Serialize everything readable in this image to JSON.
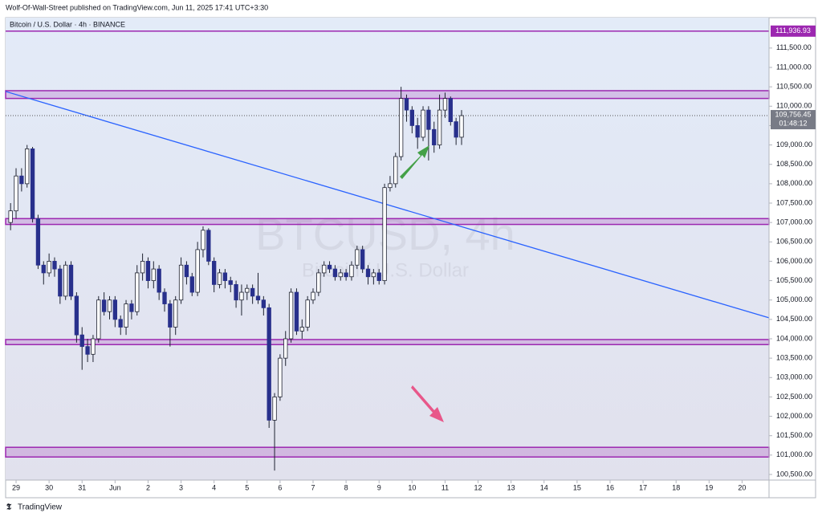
{
  "header": "Wolf-Of-Wall-Street published on TradingView.com, Jun 11, 2025 17:41 UTC+3:30",
  "footer": "TradingView",
  "chart_data": {
    "type": "candlestick",
    "title": "Bitcoin / U.S. Dollar · 4h · BINANCE",
    "watermark": "BTCUSD, 4h",
    "watermark_subtitle": "Bitcoin / U.S. Dollar",
    "up_color": "#ffffff",
    "down_color": "#28308c",
    "wick_color": "#1e2230",
    "candles": [
      [
        107000,
        107500,
        106800,
        107300
      ],
      [
        107300,
        108400,
        107100,
        108200
      ],
      [
        108200,
        108400,
        107800,
        108000
      ],
      [
        108000,
        109000,
        107900,
        108900
      ],
      [
        108900,
        108950,
        107000,
        107100
      ],
      [
        107100,
        107200,
        105800,
        105900
      ],
      [
        105900,
        106000,
        105400,
        105700
      ],
      [
        105700,
        106200,
        105600,
        106000
      ],
      [
        106000,
        106100,
        105600,
        105800
      ],
      [
        105800,
        105900,
        104900,
        105100
      ],
      [
        105100,
        106000,
        105000,
        105900
      ],
      [
        105900,
        106000,
        105000,
        105100
      ],
      [
        105100,
        105200,
        103900,
        104100
      ],
      [
        104100,
        104300,
        103200,
        103800
      ],
      [
        103800,
        104000,
        103400,
        103600
      ],
      [
        103600,
        104100,
        103400,
        104000
      ],
      [
        104000,
        105100,
        103900,
        105000
      ],
      [
        105000,
        105200,
        104600,
        104700
      ],
      [
        104700,
        105100,
        104500,
        105000
      ],
      [
        105000,
        105100,
        104300,
        104500
      ],
      [
        104500,
        104600,
        104100,
        104300
      ],
      [
        104300,
        105000,
        104100,
        104900
      ],
      [
        104900,
        105000,
        104500,
        104700
      ],
      [
        104700,
        105900,
        104600,
        105700
      ],
      [
        105700,
        106200,
        105500,
        106000
      ],
      [
        106000,
        106100,
        105300,
        105500
      ],
      [
        105500,
        106000,
        105300,
        105800
      ],
      [
        105800,
        105900,
        105000,
        105200
      ],
      [
        105200,
        105300,
        104700,
        104900
      ],
      [
        104900,
        105000,
        103800,
        104300
      ],
      [
        104300,
        105100,
        104100,
        105000
      ],
      [
        105000,
        106100,
        104900,
        105900
      ],
      [
        105900,
        106000,
        105400,
        105600
      ],
      [
        105600,
        105700,
        105100,
        105200
      ],
      [
        105200,
        106500,
        105100,
        106300
      ],
      [
        106300,
        106900,
        106100,
        106800
      ],
      [
        106800,
        106850,
        105900,
        106000
      ],
      [
        106000,
        106100,
        105200,
        105400
      ],
      [
        105400,
        105800,
        105300,
        105700
      ],
      [
        105700,
        105800,
        105300,
        105500
      ],
      [
        105500,
        105600,
        105200,
        105400
      ],
      [
        105400,
        105500,
        104800,
        105000
      ],
      [
        105000,
        105400,
        104600,
        105200
      ],
      [
        105200,
        105400,
        105000,
        105300
      ],
      [
        105300,
        105400,
        104900,
        105100
      ],
      [
        105100,
        105700,
        104900,
        105000
      ],
      [
        105000,
        105100,
        104600,
        104800
      ],
      [
        104800,
        104900,
        101700,
        101900
      ],
      [
        101900,
        102600,
        100600,
        102500
      ],
      [
        102500,
        103600,
        102400,
        103500
      ],
      [
        103500,
        104200,
        103300,
        104000
      ],
      [
        104000,
        105300,
        103900,
        105200
      ],
      [
        105200,
        105300,
        104100,
        104200
      ],
      [
        104200,
        104500,
        104000,
        104300
      ],
      [
        104300,
        105100,
        104200,
        105000
      ],
      [
        105000,
        105300,
        104900,
        105200
      ],
      [
        105200,
        105800,
        105100,
        105700
      ],
      [
        105700,
        106000,
        105600,
        105900
      ],
      [
        105900,
        106000,
        105700,
        105800
      ],
      [
        105800,
        105900,
        105500,
        105600
      ],
      [
        105600,
        105800,
        105500,
        105700
      ],
      [
        105700,
        105800,
        105500,
        105600
      ],
      [
        105600,
        106000,
        105500,
        105900
      ],
      [
        105900,
        106400,
        105800,
        106300
      ],
      [
        106300,
        106400,
        105700,
        105800
      ],
      [
        105800,
        105900,
        105400,
        105600
      ],
      [
        105600,
        105800,
        105400,
        105700
      ],
      [
        105700,
        105800,
        105400,
        105500
      ],
      [
        105500,
        108000,
        105400,
        107900
      ],
      [
        107900,
        108200,
        107800,
        108000
      ],
      [
        108000,
        108800,
        107900,
        108700
      ],
      [
        108700,
        110500,
        108600,
        110200
      ],
      [
        110200,
        110300,
        109600,
        109900
      ],
      [
        109900,
        110000,
        109300,
        109500
      ],
      [
        109500,
        109700,
        108900,
        109200
      ],
      [
        109200,
        110000,
        109100,
        109900
      ],
      [
        109900,
        110000,
        108600,
        109400
      ],
      [
        109400,
        109600,
        108800,
        109000
      ],
      [
        109000,
        110300,
        108900,
        109900
      ],
      [
        109900,
        110350,
        109700,
        110200
      ],
      [
        110200,
        110250,
        109500,
        109600
      ],
      [
        109600,
        109700,
        109000,
        109200
      ],
      [
        109200,
        109900,
        109000,
        109756.45
      ]
    ],
    "ylim": [
      100355,
      112284
    ],
    "yticks": [
      {
        "value": 100500,
        "label": "100,500.00"
      },
      {
        "value": 101000,
        "label": "101,000.00"
      },
      {
        "value": 101500,
        "label": "101,500.00"
      },
      {
        "value": 102000,
        "label": "102,000.00"
      },
      {
        "value": 102500,
        "label": "102,500.00"
      },
      {
        "value": 103000,
        "label": "103,000.00"
      },
      {
        "value": 103500,
        "label": "103,500.00"
      },
      {
        "value": 104000,
        "label": "104,000.00"
      },
      {
        "value": 104500,
        "label": "104,500.00"
      },
      {
        "value": 105000,
        "label": "105,000.00"
      },
      {
        "value": 105500,
        "label": "105,500.00"
      },
      {
        "value": 106000,
        "label": "106,000.00"
      },
      {
        "value": 106500,
        "label": "106,500.00"
      },
      {
        "value": 107000,
        "label": "107,000.00"
      },
      {
        "value": 107500,
        "label": "107,500.00"
      },
      {
        "value": 108000,
        "label": "108,000.00"
      },
      {
        "value": 108500,
        "label": "108,500.00"
      },
      {
        "value": 109000,
        "label": "109,000.00"
      },
      {
        "value": 109500,
        "label": "109,500.00"
      },
      {
        "value": 110000,
        "label": "110,000.00"
      },
      {
        "value": 110500,
        "label": "110,500.00"
      },
      {
        "value": 111000,
        "label": "111,000.00"
      },
      {
        "value": 111500,
        "label": "111,500.00"
      }
    ],
    "xlim": [
      -0.9,
      137.9
    ],
    "xticks": [
      {
        "value": 1,
        "label": "29"
      },
      {
        "value": 7,
        "label": "30"
      },
      {
        "value": 13,
        "label": "31"
      },
      {
        "value": 19,
        "label": "Jun"
      },
      {
        "value": 25,
        "label": "2"
      },
      {
        "value": 31,
        "label": "3"
      },
      {
        "value": 37,
        "label": "4"
      },
      {
        "value": 43,
        "label": "5"
      },
      {
        "value": 49,
        "label": "6"
      },
      {
        "value": 55,
        "label": "7"
      },
      {
        "value": 61,
        "label": "8"
      },
      {
        "value": 67,
        "label": "9"
      },
      {
        "value": 73,
        "label": "10"
      },
      {
        "value": 79,
        "label": "11"
      },
      {
        "value": 85,
        "label": "12"
      },
      {
        "value": 91,
        "label": "13"
      },
      {
        "value": 97,
        "label": "14"
      },
      {
        "value": 103,
        "label": "15"
      },
      {
        "value": 109,
        "label": "16"
      },
      {
        "value": 115,
        "label": "17"
      },
      {
        "value": 121,
        "label": "18"
      },
      {
        "value": 127,
        "label": "19"
      },
      {
        "value": 133,
        "label": "20"
      }
    ],
    "zones": [
      [
        110200,
        110400
      ],
      [
        106950,
        107100
      ],
      [
        103850,
        103980
      ],
      [
        100950,
        101200
      ]
    ],
    "zone_color": "#9c27b0",
    "level": {
      "value": 111936.93,
      "label": "111,936.93"
    },
    "last_price": {
      "value": 109756.45,
      "label": "109,756.45"
    },
    "countdown": "01:48:12",
    "trendline": {
      "x": [
        -0.9,
        137.9
      ],
      "y": [
        110380,
        104540
      ],
      "color": "#2962ff"
    }
  }
}
